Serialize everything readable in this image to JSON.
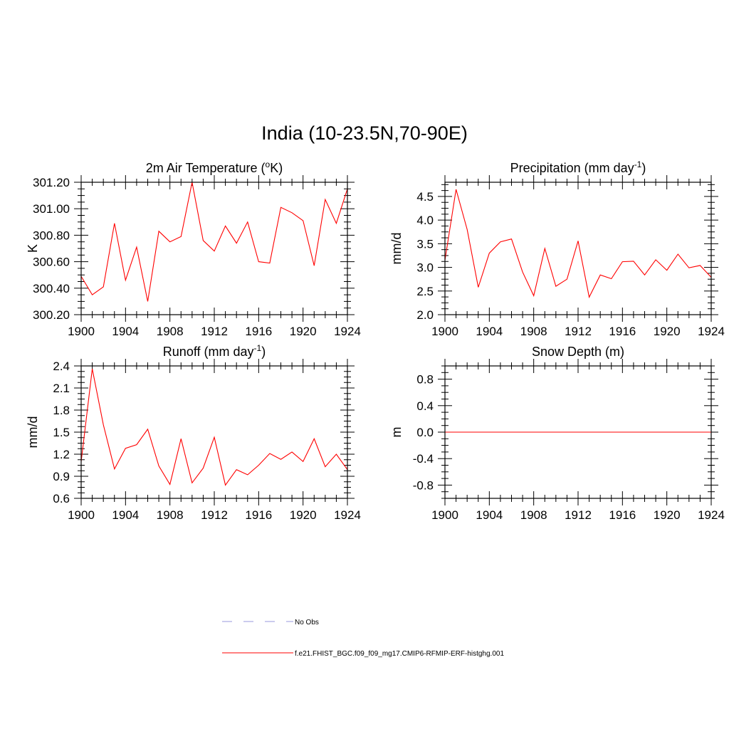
{
  "title": "India (10-23.5N,70-90E)",
  "line_color": "#ff0000",
  "obs_color": "#9999dd",
  "chart_data": [
    {
      "type": "line",
      "title": "2m Air Temperature (",
      "title_sup": "o",
      "title_after": "K)",
      "ylabel": "K",
      "xlim": [
        1900,
        1924
      ],
      "ylim": [
        300.2,
        301.2
      ],
      "yticks": [
        "300.20",
        "300.40",
        "300.60",
        "300.80",
        "301.00",
        "301.20"
      ],
      "xticks": [
        "1900",
        "1904",
        "1908",
        "1912",
        "1916",
        "1920",
        "1924"
      ],
      "series": [
        {
          "x": [
            1900,
            1901,
            1902,
            1903,
            1904,
            1905,
            1906,
            1907,
            1908,
            1909,
            1910,
            1911,
            1912,
            1913,
            1914,
            1915,
            1916,
            1917,
            1918,
            1919,
            1920,
            1921,
            1922,
            1923,
            1924
          ],
          "values": [
            300.49,
            300.35,
            300.41,
            300.89,
            300.46,
            300.71,
            300.3,
            300.83,
            300.75,
            300.79,
            301.2,
            300.76,
            300.68,
            300.87,
            300.74,
            300.9,
            300.6,
            300.59,
            301.01,
            300.97,
            300.91,
            300.57,
            301.07,
            300.89,
            301.15
          ]
        }
      ]
    },
    {
      "type": "line",
      "title": "Precipitation (mm day",
      "title_sup": "-1",
      "title_after": ")",
      "ylabel": "mm/d",
      "xlim": [
        1900,
        1924
      ],
      "ylim": [
        2.0,
        4.8
      ],
      "yticks": [
        "2.0",
        "2.5",
        "3.0",
        "3.5",
        "4.0",
        "4.5"
      ],
      "xticks": [
        "1900",
        "1904",
        "1908",
        "1912",
        "1916",
        "1920",
        "1924"
      ],
      "series": [
        {
          "x": [
            1900,
            1901,
            1902,
            1903,
            1904,
            1905,
            1906,
            1907,
            1908,
            1909,
            1910,
            1911,
            1912,
            1913,
            1914,
            1915,
            1916,
            1917,
            1918,
            1919,
            1920,
            1921,
            1922,
            1923,
            1924
          ],
          "values": [
            3.15,
            4.65,
            3.8,
            2.58,
            3.3,
            3.54,
            3.6,
            2.9,
            2.4,
            3.4,
            2.6,
            2.75,
            3.56,
            2.37,
            2.84,
            2.76,
            3.12,
            3.13,
            2.84,
            3.16,
            2.94,
            3.28,
            2.99,
            3.04,
            2.79
          ]
        }
      ]
    },
    {
      "type": "line",
      "title": "Runoff (mm day",
      "title_sup": "-1",
      "title_after": ")",
      "ylabel": "mm/d",
      "xlim": [
        1900,
        1924
      ],
      "ylim": [
        0.6,
        2.4
      ],
      "yticks": [
        "0.6",
        "0.9",
        "1.2",
        "1.5",
        "1.8",
        "2.1",
        "2.4"
      ],
      "xticks": [
        "1900",
        "1904",
        "1908",
        "1912",
        "1916",
        "1920",
        "1924"
      ],
      "series": [
        {
          "x": [
            1900,
            1901,
            1902,
            1903,
            1904,
            1905,
            1906,
            1907,
            1908,
            1909,
            1910,
            1911,
            1912,
            1913,
            1914,
            1915,
            1916,
            1917,
            1918,
            1919,
            1920,
            1921,
            1922,
            1923,
            1924
          ],
          "values": [
            1.1,
            2.36,
            1.6,
            1.0,
            1.28,
            1.33,
            1.54,
            1.04,
            0.79,
            1.41,
            0.81,
            1.01,
            1.43,
            0.78,
            0.99,
            0.92,
            1.05,
            1.21,
            1.13,
            1.23,
            1.1,
            1.41,
            1.03,
            1.2,
            0.99
          ]
        }
      ]
    },
    {
      "type": "line",
      "title": "Snow Depth (m)",
      "title_sup": "",
      "title_after": "",
      "ylabel": "m",
      "xlim": [
        1900,
        1924
      ],
      "ylim": [
        -1.0,
        1.0
      ],
      "yticks": [
        "-0.8",
        "-0.4",
        "0.0",
        "0.4",
        "0.8"
      ],
      "xticks": [
        "1900",
        "1904",
        "1908",
        "1912",
        "1916",
        "1920",
        "1924"
      ],
      "series": [
        {
          "x": [
            1900,
            1924
          ],
          "values": [
            0.0,
            0.0
          ]
        }
      ]
    }
  ],
  "legend": [
    {
      "label": "No Obs",
      "style": "dashed"
    },
    {
      "label": "f.e21.FHIST_BGC.f09_f09_mg17.CMIP6-RFMIP-ERF-histghg.001",
      "style": "solid"
    }
  ]
}
